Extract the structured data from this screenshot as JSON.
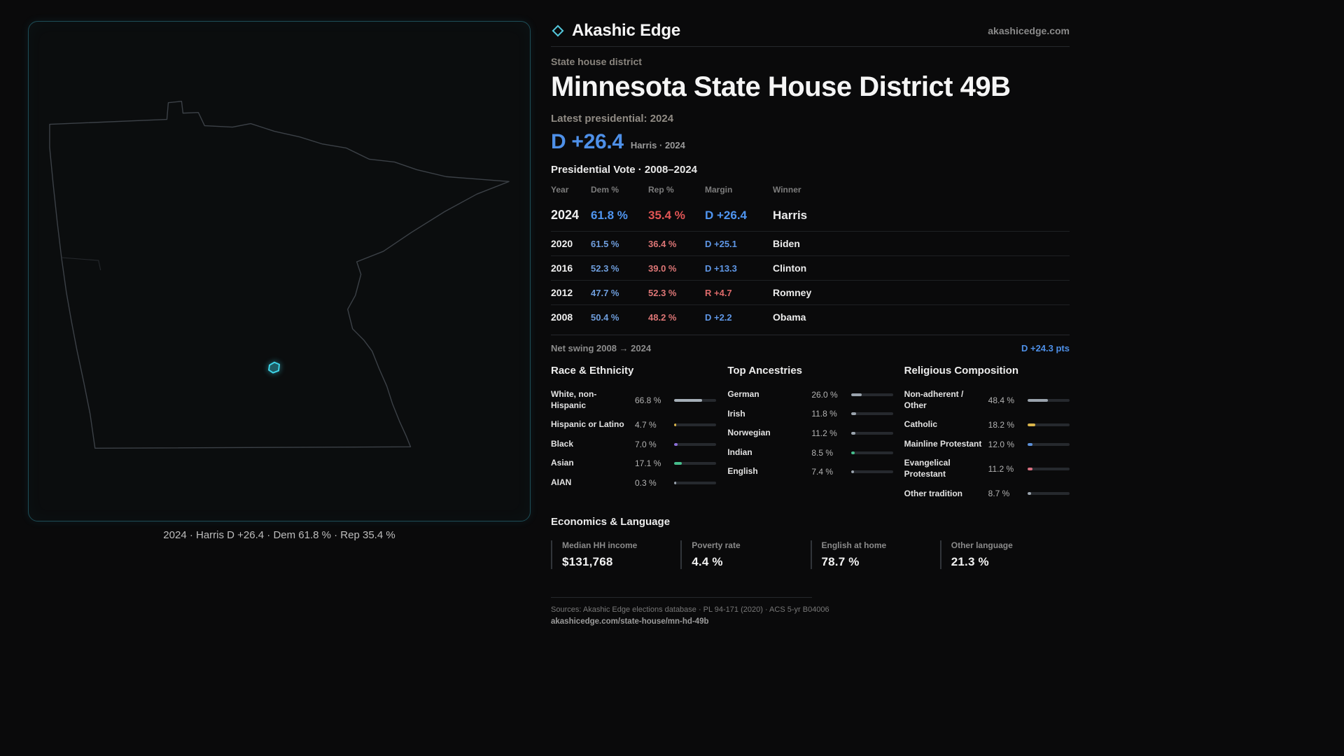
{
  "brand": {
    "name": "Akashic Edge",
    "domain": "akashicedge.com",
    "logo_icon": "diamond-outline"
  },
  "colors": {
    "dem_blue": "#4f95f0",
    "rep_red": "#e25555",
    "accent_cyan": "#3ed4e8",
    "bar_track": "#26292e"
  },
  "map": {
    "caption": "2024 · Harris D +26.4 · Dem 61.8 % · Rep 35.4 %"
  },
  "header": {
    "kicker": "State house district",
    "title": "Minnesota State House District 49B",
    "latest_label": "Latest presidential: 2024",
    "margin_big": "D +26.4",
    "margin_sub": "Harris · 2024"
  },
  "vote_table": {
    "title": "Presidential Vote · 2008–2024",
    "columns": [
      "Year",
      "Dem %",
      "Rep %",
      "Margin",
      "Winner"
    ],
    "rows": [
      {
        "year": "2024",
        "dem": "61.8 %",
        "rep": "35.4 %",
        "margin": "D +26.4",
        "margin_party": "D",
        "winner": "Harris"
      },
      {
        "year": "2020",
        "dem": "61.5 %",
        "rep": "36.4 %",
        "margin": "D +25.1",
        "margin_party": "D",
        "winner": "Biden"
      },
      {
        "year": "2016",
        "dem": "52.3 %",
        "rep": "39.0 %",
        "margin": "D +13.3",
        "margin_party": "D",
        "winner": "Clinton"
      },
      {
        "year": "2012",
        "dem": "47.7 %",
        "rep": "52.3 %",
        "margin": "R +4.7",
        "margin_party": "R",
        "winner": "Romney"
      },
      {
        "year": "2008",
        "dem": "50.4 %",
        "rep": "48.2 %",
        "margin": "D +2.2",
        "margin_party": "D",
        "winner": "Obama"
      }
    ],
    "net_swing_label": "Net swing 2008 → 2024",
    "net_swing_value": "D +24.3 pts"
  },
  "demographics": {
    "race": {
      "title": "Race & Ethnicity",
      "rows": [
        {
          "label": "White, non-Hispanic",
          "value": "66.8 %",
          "pct": 66.8,
          "color": "#a6afb8"
        },
        {
          "label": "Hispanic or Latino",
          "value": "4.7 %",
          "pct": 4.7,
          "color": "#d9b44a"
        },
        {
          "label": "Black",
          "value": "7.0 %",
          "pct": 7.0,
          "color": "#8b6fd9"
        },
        {
          "label": "Asian",
          "value": "17.1 %",
          "pct": 17.1,
          "color": "#45bd8b"
        },
        {
          "label": "AIAN",
          "value": "0.3 %",
          "pct": 0.3,
          "color": "#9aa3ad"
        }
      ]
    },
    "ancestry": {
      "title": "Top Ancestries",
      "rows": [
        {
          "label": "German",
          "value": "26.0 %",
          "pct": 26.0,
          "color": "#9aa3ad"
        },
        {
          "label": "Irish",
          "value": "11.8 %",
          "pct": 11.8,
          "color": "#9aa3ad"
        },
        {
          "label": "Norwegian",
          "value": "11.2 %",
          "pct": 11.2,
          "color": "#9aa3ad"
        },
        {
          "label": "Indian",
          "value": "8.5 %",
          "pct": 8.5,
          "color": "#45bd8b"
        },
        {
          "label": "English",
          "value": "7.4 %",
          "pct": 7.4,
          "color": "#9aa3ad"
        }
      ]
    },
    "religion": {
      "title": "Religious Composition",
      "rows": [
        {
          "label": "Non-adherent / Other",
          "value": "48.4 %",
          "pct": 48.4,
          "color": "#9aa3ad"
        },
        {
          "label": "Catholic",
          "value": "18.2 %",
          "pct": 18.2,
          "color": "#d9b44a"
        },
        {
          "label": "Mainline Protestant",
          "value": "12.0 %",
          "pct": 12.0,
          "color": "#5b8fd9"
        },
        {
          "label": "Evangelical Protestant",
          "value": "11.2 %",
          "pct": 11.2,
          "color": "#d97080"
        },
        {
          "label": "Other tradition",
          "value": "8.7 %",
          "pct": 8.7,
          "color": "#9aa3ad"
        }
      ]
    }
  },
  "economics": {
    "title": "Economics & Language",
    "stats": [
      {
        "label": "Median HH income",
        "value": "$131,768"
      },
      {
        "label": "Poverty rate",
        "value": "4.4 %"
      },
      {
        "label": "English at home",
        "value": "78.7 %"
      },
      {
        "label": "Other language",
        "value": "21.3 %"
      }
    ]
  },
  "footer": {
    "sources": "Sources: Akashic Edge elections database · PL 94-171 (2020) · ACS 5-yr B04006",
    "permalink": "akashicedge.com/state-house/mn-hd-49b"
  },
  "chart_data": [
    {
      "type": "table",
      "title": "Presidential Vote · 2008–2024",
      "columns": [
        "Year",
        "Dem %",
        "Rep %",
        "Margin",
        "Winner"
      ],
      "rows": [
        [
          "2024",
          61.8,
          35.4,
          "D +26.4",
          "Harris"
        ],
        [
          "2020",
          61.5,
          36.4,
          "D +25.1",
          "Biden"
        ],
        [
          "2016",
          52.3,
          39.0,
          "D +13.3",
          "Clinton"
        ],
        [
          "2012",
          47.7,
          52.3,
          "R +4.7",
          "Romney"
        ],
        [
          "2008",
          50.4,
          48.2,
          "D +2.2",
          "Obama"
        ]
      ],
      "annotations": [
        "Net swing 2008 → 2024: D +24.3 pts"
      ]
    },
    {
      "type": "bar",
      "title": "Race & Ethnicity",
      "categories": [
        "White, non-Hispanic",
        "Hispanic or Latino",
        "Black",
        "Asian",
        "AIAN"
      ],
      "values": [
        66.8,
        4.7,
        7.0,
        17.1,
        0.3
      ],
      "unit": "%",
      "xlim": [
        0,
        100
      ]
    },
    {
      "type": "bar",
      "title": "Top Ancestries",
      "categories": [
        "German",
        "Irish",
        "Norwegian",
        "Indian",
        "English"
      ],
      "values": [
        26.0,
        11.8,
        11.2,
        8.5,
        7.4
      ],
      "unit": "%",
      "xlim": [
        0,
        100
      ]
    },
    {
      "type": "bar",
      "title": "Religious Composition",
      "categories": [
        "Non-adherent / Other",
        "Catholic",
        "Mainline Protestant",
        "Evangelical Protestant",
        "Other tradition"
      ],
      "values": [
        48.4,
        18.2,
        12.0,
        11.2,
        8.7
      ],
      "unit": "%",
      "xlim": [
        0,
        100
      ]
    },
    {
      "type": "table",
      "title": "Economics & Language",
      "columns": [
        "Median HH income",
        "Poverty rate",
        "English at home",
        "Other language"
      ],
      "rows": [
        [
          "$131,768",
          "4.4 %",
          "78.7 %",
          "21.3 %"
        ]
      ]
    }
  ]
}
